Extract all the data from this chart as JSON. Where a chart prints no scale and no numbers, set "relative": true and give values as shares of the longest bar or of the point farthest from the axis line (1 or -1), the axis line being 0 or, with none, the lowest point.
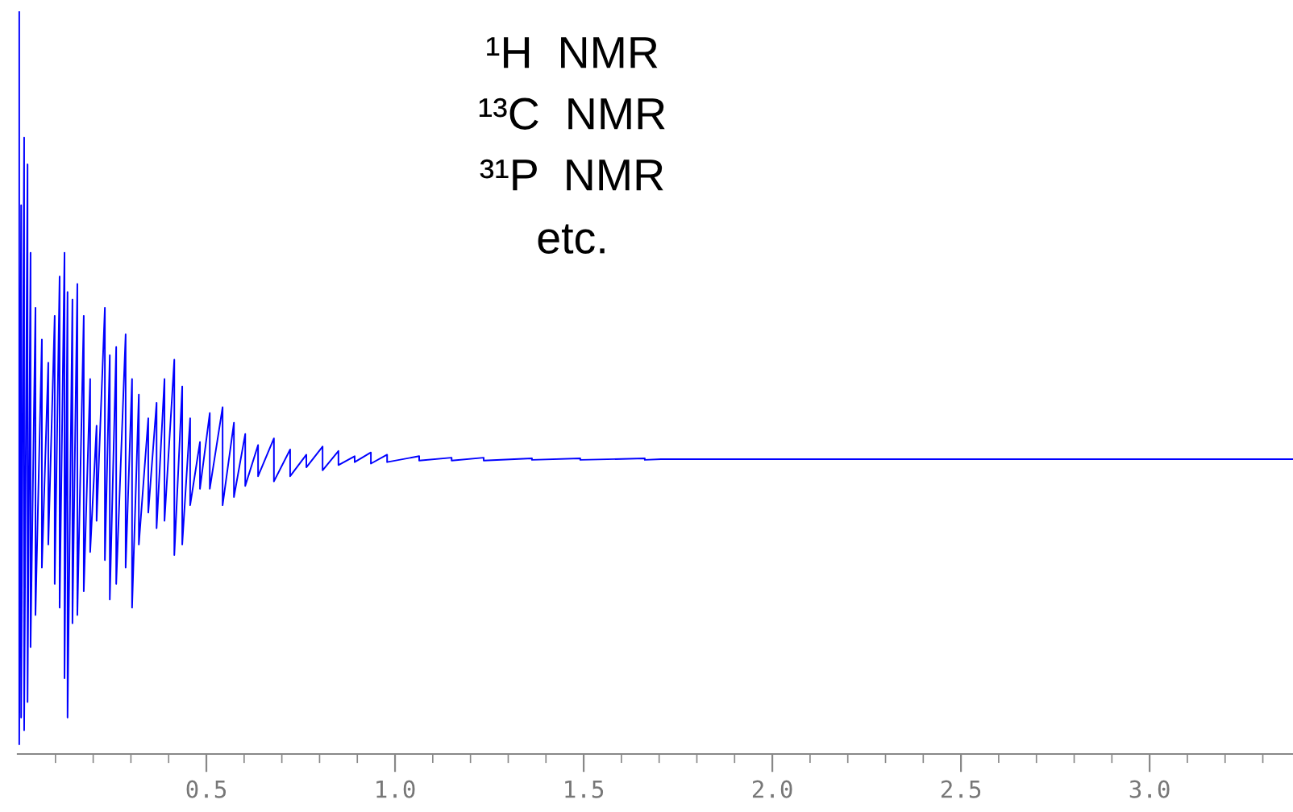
{
  "chart_data": {
    "type": "line",
    "relative": true,
    "annotations": [
      "¹H  NMR",
      "¹³C  NMR",
      "³¹P  NMR",
      "etc."
    ],
    "xlim": [
      0,
      3.38
    ],
    "xticks": [
      {
        "value": 0.1,
        "label": null
      },
      {
        "value": 0.2,
        "label": null
      },
      {
        "value": 0.3,
        "label": null
      },
      {
        "value": 0.4,
        "label": null
      },
      {
        "value": 0.5,
        "label": "0.5"
      },
      {
        "value": 0.6,
        "label": null
      },
      {
        "value": 0.7,
        "label": null
      },
      {
        "value": 0.8,
        "label": null
      },
      {
        "value": 0.9,
        "label": null
      },
      {
        "value": 1.0,
        "label": "1.0"
      },
      {
        "value": 1.1,
        "label": null
      },
      {
        "value": 1.2,
        "label": null
      },
      {
        "value": 1.3,
        "label": null
      },
      {
        "value": 1.4,
        "label": null
      },
      {
        "value": 1.5,
        "label": "1.5"
      },
      {
        "value": 1.6,
        "label": null
      },
      {
        "value": 1.7,
        "label": null
      },
      {
        "value": 1.8,
        "label": null
      },
      {
        "value": 1.9,
        "label": null
      },
      {
        "value": 2.0,
        "label": "2.0"
      },
      {
        "value": 2.1,
        "label": null
      },
      {
        "value": 2.2,
        "label": null
      },
      {
        "value": 2.3,
        "label": null
      },
      {
        "value": 2.4,
        "label": null
      },
      {
        "value": 2.5,
        "label": "2.5"
      },
      {
        "value": 2.6,
        "label": null
      },
      {
        "value": 2.7,
        "label": null
      },
      {
        "value": 2.8,
        "label": null
      },
      {
        "value": 2.9,
        "label": null
      },
      {
        "value": 3.0,
        "label": "3.0"
      },
      {
        "value": 3.1,
        "label": null
      },
      {
        "value": 3.2,
        "label": null
      },
      {
        "value": 3.3,
        "label": null
      }
    ],
    "grid": false,
    "legend": false,
    "marker": "none",
    "line_style": "solid",
    "series": [
      {
        "color": "#0000ff",
        "x": [
          0.004,
          0.004,
          0.009,
          0.009,
          0.017,
          0.017,
          0.026,
          0.026,
          0.034,
          0.034,
          0.047,
          0.047,
          0.064,
          0.064,
          0.081,
          0.081,
          0.098,
          0.098,
          0.111,
          0.111,
          0.124,
          0.124,
          0.132,
          0.132,
          0.145,
          0.145,
          0.158,
          0.158,
          0.175,
          0.175,
          0.192,
          0.192,
          0.209,
          0.209,
          0.231,
          0.231,
          0.244,
          0.244,
          0.261,
          0.261,
          0.286,
          0.286,
          0.303,
          0.303,
          0.321,
          0.321,
          0.346,
          0.346,
          0.368,
          0.368,
          0.389,
          0.389,
          0.415,
          0.415,
          0.436,
          0.436,
          0.457,
          0.457,
          0.483,
          0.483,
          0.509,
          0.509,
          0.543,
          0.543,
          0.573,
          0.573,
          0.603,
          0.603,
          0.637,
          0.637,
          0.679,
          0.679,
          0.722,
          0.722,
          0.765,
          0.765,
          0.808,
          0.808,
          0.85,
          0.85,
          0.893,
          0.893,
          0.936,
          0.936,
          0.979,
          0.979,
          1.064,
          1.064,
          1.15,
          1.15,
          1.235,
          1.235,
          1.363,
          1.363,
          1.491,
          1.491,
          1.662,
          1.662,
          1.705,
          3.38
        ],
        "values": [
          1.0,
          0.013,
          0.739,
          0.049,
          0.83,
          0.032,
          0.794,
          0.07,
          0.675,
          0.144,
          0.601,
          0.187,
          0.558,
          0.251,
          0.527,
          0.282,
          0.59,
          0.229,
          0.643,
          0.197,
          0.675,
          0.102,
          0.622,
          0.049,
          0.612,
          0.176,
          0.633,
          0.187,
          0.59,
          0.219,
          0.505,
          0.272,
          0.442,
          0.314,
          0.601,
          0.261,
          0.537,
          0.208,
          0.548,
          0.229,
          0.565,
          0.251,
          0.505,
          0.197,
          0.484,
          0.282,
          0.452,
          0.325,
          0.473,
          0.304,
          0.505,
          0.314,
          0.531,
          0.268,
          0.495,
          0.282,
          0.452,
          0.335,
          0.42,
          0.357,
          0.459,
          0.357,
          0.467,
          0.335,
          0.446,
          0.346,
          0.431,
          0.361,
          0.416,
          0.374,
          0.425,
          0.367,
          0.41,
          0.374,
          0.403,
          0.386,
          0.414,
          0.382,
          0.408,
          0.389,
          0.401,
          0.393,
          0.406,
          0.391,
          0.403,
          0.393,
          0.401,
          0.395,
          0.399,
          0.395,
          0.399,
          0.395,
          0.398,
          0.396,
          0.398,
          0.396,
          0.398,
          0.396,
          0.397,
          0.397
        ]
      }
    ]
  }
}
